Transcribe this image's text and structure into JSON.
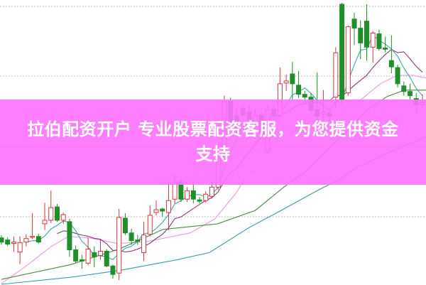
{
  "chart_data": {
    "type": "candlestick",
    "title": "",
    "xlabel": "",
    "ylabel": "",
    "ylim": [
      0,
      100
    ],
    "grid": "horizontal-dotted",
    "gridlines": [
      24,
      49,
      74,
      98.75
    ],
    "colors": {
      "up": "#d9363e",
      "down": "#1f8f2a",
      "ma5": "#3ea3b3",
      "ma10": "#8a3d7c",
      "pink_line": "#e99be6",
      "green_line": "#4a8a45",
      "teal_line": "#3c9aa6",
      "grid": "#aaaaaa"
    },
    "candles": [
      [
        16.5,
        17.5,
        14,
        15
      ],
      [
        15.75,
        16.75,
        13.5,
        14.25
      ],
      [
        14.5,
        17,
        11.5,
        15
      ],
      [
        11.5,
        17,
        7.25,
        14.75
      ],
      [
        15,
        17.75,
        13.5,
        16.25
      ],
      [
        16.75,
        25.25,
        16,
        17
      ],
      [
        17,
        18,
        14.5,
        15
      ],
      [
        21.5,
        29,
        19.25,
        22.75
      ],
      [
        22.75,
        33.25,
        21.75,
        27.25
      ],
      [
        27.5,
        28.5,
        22.25,
        22.75
      ],
      [
        22.75,
        25.5,
        21.5,
        24.75
      ],
      [
        22.25,
        23.25,
        9.75,
        12.25
      ],
      [
        12.25,
        13.75,
        7.5,
        8.25
      ],
      [
        8.75,
        10.5,
        5.5,
        8.25
      ],
      [
        7.5,
        16.5,
        6.75,
        12.5
      ],
      [
        11.25,
        13.5,
        6,
        9.75
      ],
      [
        10.25,
        16,
        8.75,
        11.75
      ],
      [
        11.75,
        12.5,
        6,
        6.5
      ],
      [
        6.5,
        7,
        2,
        3.5
      ],
      [
        4,
        26.75,
        1.5,
        23.75
      ],
      [
        23.5,
        25.25,
        17.5,
        18.25
      ],
      [
        18.25,
        19.75,
        14,
        15.5
      ],
      [
        15.75,
        17.5,
        14,
        15.25
      ],
      [
        11.25,
        22.25,
        8.25,
        17.5
      ],
      [
        17.75,
        28,
        17,
        24.5
      ],
      [
        25.5,
        29.75,
        24.5,
        26.5
      ],
      [
        26.75,
        27.25,
        24,
        26
      ],
      [
        25.5,
        36.25,
        19.25,
        29.75
      ],
      [
        30.25,
        38.75,
        28.75,
        36
      ],
      [
        36.5,
        37.5,
        29.25,
        30.25
      ],
      [
        30.25,
        34.5,
        29.25,
        33.25
      ],
      [
        33.25,
        37,
        28.75,
        30.25
      ],
      [
        30,
        31,
        28.75,
        29.5
      ],
      [
        29.75,
        33,
        29,
        32
      ],
      [
        31.25,
        36.25,
        30.5,
        34.5
      ],
      [
        34.5,
        50,
        33.5,
        46.25
      ],
      [
        46.25,
        67,
        45,
        65
      ],
      [
        65,
        66.25,
        55.5,
        57.5
      ],
      [
        60,
        62.5,
        53,
        55
      ],
      [
        62.5,
        63.75,
        58,
        60
      ],
      [
        61.25,
        63.75,
        57.5,
        58.75
      ],
      [
        57.5,
        62,
        56.25,
        60
      ],
      [
        60,
        61.25,
        52.5,
        53.75
      ],
      [
        47,
        63.75,
        46.25,
        62
      ],
      [
        62.25,
        63.75,
        58.75,
        59.75
      ],
      [
        60,
        77,
        59.25,
        71.25
      ],
      [
        71.5,
        74.5,
        68.75,
        72.25
      ],
      [
        74.75,
        79,
        65,
        71.25
      ],
      [
        70.75,
        75.75,
        66.25,
        67.5
      ],
      [
        67.5,
        68.75,
        65,
        66.5
      ],
      [
        66.5,
        68,
        60.5,
        61.75
      ],
      [
        62.25,
        75.25,
        58,
        59.75
      ],
      [
        60.5,
        69,
        58.75,
        61.25
      ],
      [
        60.75,
        62.5,
        58,
        59.75
      ],
      [
        66.5,
        84.25,
        62.5,
        82.25
      ],
      [
        99.5,
        100,
        63.75,
        65.5
      ],
      [
        68,
        92,
        67,
        91.5
      ],
      [
        94.25,
        96.5,
        85,
        91
      ],
      [
        91,
        93.75,
        80,
        85.75
      ],
      [
        93.5,
        99.5,
        79.5,
        84.25
      ],
      [
        84.25,
        90,
        78.75,
        89.25
      ],
      [
        89,
        90.5,
        83,
        83.75
      ],
      [
        84,
        88,
        82.5,
        83.5
      ],
      [
        79.5,
        88.5,
        75,
        77.25
      ],
      [
        77,
        78,
        70,
        71.25
      ],
      [
        70.5,
        72,
        67,
        68.5
      ],
      [
        68.5,
        71.25,
        65.5,
        67
      ],
      [
        66,
        68,
        60,
        63.75
      ],
      [
        63.75,
        67.5,
        62.5,
        64.5
      ]
    ],
    "candle_fields": [
      "open",
      "high",
      "low",
      "close"
    ],
    "lines": [
      {
        "key": "pink_line",
        "points": [
          [
            0,
            0.25
          ],
          [
            3.7,
            6
          ],
          [
            8.1,
            13.5
          ],
          [
            10.8,
            17
          ],
          [
            14.2,
            16.5
          ],
          [
            18.7,
            14.5
          ],
          [
            23.1,
            15
          ],
          [
            30.5,
            18.25
          ],
          [
            34.5,
            23.25
          ],
          [
            38,
            32.75
          ],
          [
            39.3,
            37.5
          ],
          [
            45,
            52
          ],
          [
            50,
            60
          ],
          [
            53.8,
            59.75
          ],
          [
            56.9,
            63.5
          ],
          [
            61.2,
            71.25
          ],
          [
            63.9,
            74.25
          ],
          [
            66.5,
            74.25
          ],
          [
            68.6,
            73.25
          ]
        ]
      },
      {
        "key": "green_line",
        "points": [
          [
            0,
            1.75
          ],
          [
            11.2,
            7
          ],
          [
            19,
            12.5
          ],
          [
            26.1,
            19.5
          ],
          [
            34.9,
            21.5
          ],
          [
            41,
            26.25
          ],
          [
            45.6,
            34.5
          ],
          [
            49.1,
            40
          ],
          [
            53.7,
            50
          ],
          [
            59.4,
            62.5
          ],
          [
            62.3,
            66.75
          ],
          [
            65.1,
            69
          ],
          [
            68.6,
            69
          ]
        ]
      },
      {
        "key": "teal_line",
        "points": [
          [
            0,
            0
          ],
          [
            11.2,
            2.5
          ],
          [
            19.3,
            5
          ],
          [
            28.4,
            8.75
          ],
          [
            33.6,
            11.25
          ],
          [
            39.9,
            20
          ],
          [
            45.6,
            26.75
          ],
          [
            51.4,
            33.75
          ],
          [
            54.8,
            37.5
          ],
          [
            57.1,
            41.25
          ],
          [
            62.8,
            47
          ],
          [
            68.6,
            52.5
          ]
        ]
      }
    ]
  },
  "banner": {
    "line1": "拉伯配资开户 专业股票配资客服，为您提供资金",
    "line2": "支持",
    "color": "#ff70ff"
  }
}
